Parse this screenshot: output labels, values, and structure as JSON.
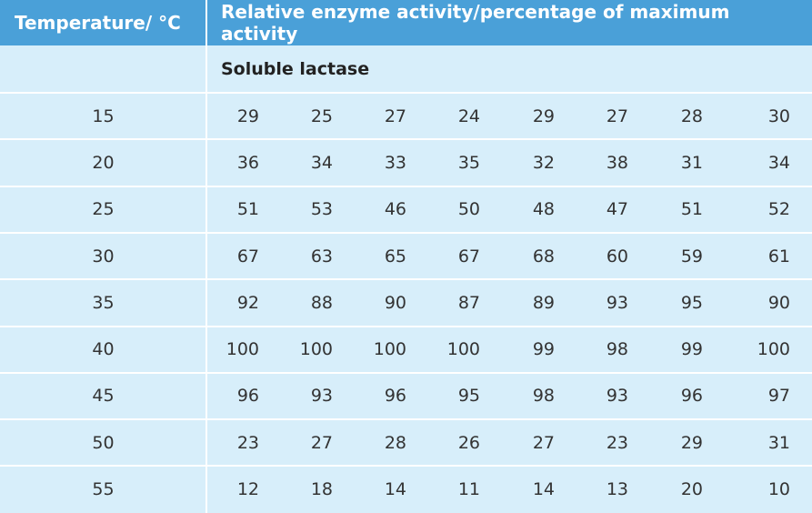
{
  "table": {
    "header": [
      "Temperature/ °C",
      "Relative enzyme activity/percentage of maximum activity"
    ],
    "subheader": "Soluble lactase",
    "rows": [
      [
        15,
        29,
        25,
        27,
        24,
        29,
        27,
        28,
        30
      ],
      [
        20,
        36,
        34,
        33,
        35,
        32,
        38,
        31,
        34
      ],
      [
        25,
        51,
        53,
        46,
        50,
        48,
        47,
        51,
        52
      ],
      [
        30,
        67,
        63,
        65,
        67,
        68,
        60,
        59,
        61
      ],
      [
        35,
        92,
        88,
        90,
        87,
        89,
        93,
        95,
        90
      ],
      [
        40,
        100,
        100,
        100,
        100,
        99,
        98,
        99,
        100
      ],
      [
        45,
        96,
        93,
        96,
        95,
        98,
        93,
        96,
        97
      ],
      [
        50,
        23,
        27,
        28,
        26,
        27,
        23,
        29,
        31
      ],
      [
        55,
        12,
        18,
        14,
        11,
        14,
        13,
        20,
        10
      ]
    ]
  }
}
